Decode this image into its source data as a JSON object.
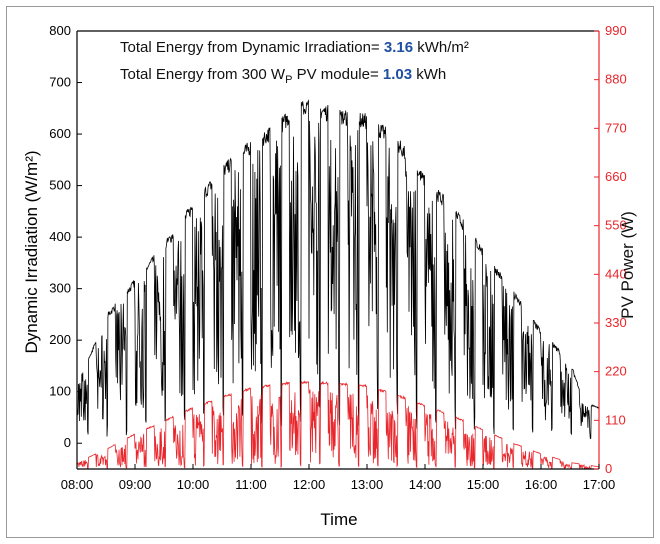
{
  "chart_data": {
    "type": "line",
    "xlabel": "Time",
    "ylabel_left": "Dynamic Irradiation (W/m²)",
    "ylabel_right": "PV Power (W)",
    "x_ticks": [
      "08:00",
      "09:00",
      "10:00",
      "11:00",
      "12:00",
      "13:00",
      "14:00",
      "15:00",
      "16:00",
      "17:00"
    ],
    "xlim": [
      "08:00",
      "17:00"
    ],
    "ylim_left": [
      -50,
      800
    ],
    "yticks_left": [
      0,
      100,
      200,
      300,
      400,
      500,
      600,
      700,
      800
    ],
    "ylim_right": [
      0,
      990
    ],
    "yticks_right": [
      0,
      110,
      220,
      330,
      440,
      550,
      660,
      770,
      880,
      990
    ],
    "annotations": [
      {
        "prefix": "Total Energy from Dynamic Irradiation= ",
        "value": "3.16",
        "unit": " kWh/m²"
      },
      {
        "prefix": "Total Energy from 300 W",
        "subscript": "P",
        "prefix2": " PV module= ",
        "value": "1.03",
        "unit": " kWh"
      }
    ],
    "series": [
      {
        "axis": "left",
        "color": "#000000",
        "envelope_time": [
          "08:00",
          "08:15",
          "08:30",
          "09:00",
          "09:30",
          "10:00",
          "10:30",
          "11:00",
          "11:30",
          "11:45",
          "12:00",
          "12:30",
          "13:00",
          "13:30",
          "14:00",
          "14:30",
          "15:00",
          "15:30",
          "16:00",
          "16:30",
          "16:45",
          "17:00"
        ],
        "envelope_values": [
          130,
          180,
          250,
          320,
          390,
          470,
          540,
          590,
          630,
          660,
          670,
          650,
          640,
          600,
          520,
          460,
          380,
          300,
          220,
          160,
          80,
          70
        ]
      },
      {
        "axis": "right",
        "color": "#e8262c",
        "envelope_time": [
          "08:00",
          "08:30",
          "09:00",
          "09:30",
          "10:00",
          "10:30",
          "11:00",
          "11:30",
          "12:00",
          "12:30",
          "13:00",
          "13:30",
          "14:00",
          "14:30",
          "15:00",
          "15:30",
          "16:00",
          "16:30",
          "17:00"
        ],
        "envelope_values": [
          15,
          45,
          80,
          110,
          140,
          165,
          185,
          195,
          200,
          195,
          190,
          170,
          145,
          120,
          90,
          60,
          35,
          15,
          5
        ]
      }
    ]
  },
  "colors": {
    "left_axis": "#000000",
    "right_axis": "#e8262c",
    "annotation_value": "#1f4fa0"
  }
}
